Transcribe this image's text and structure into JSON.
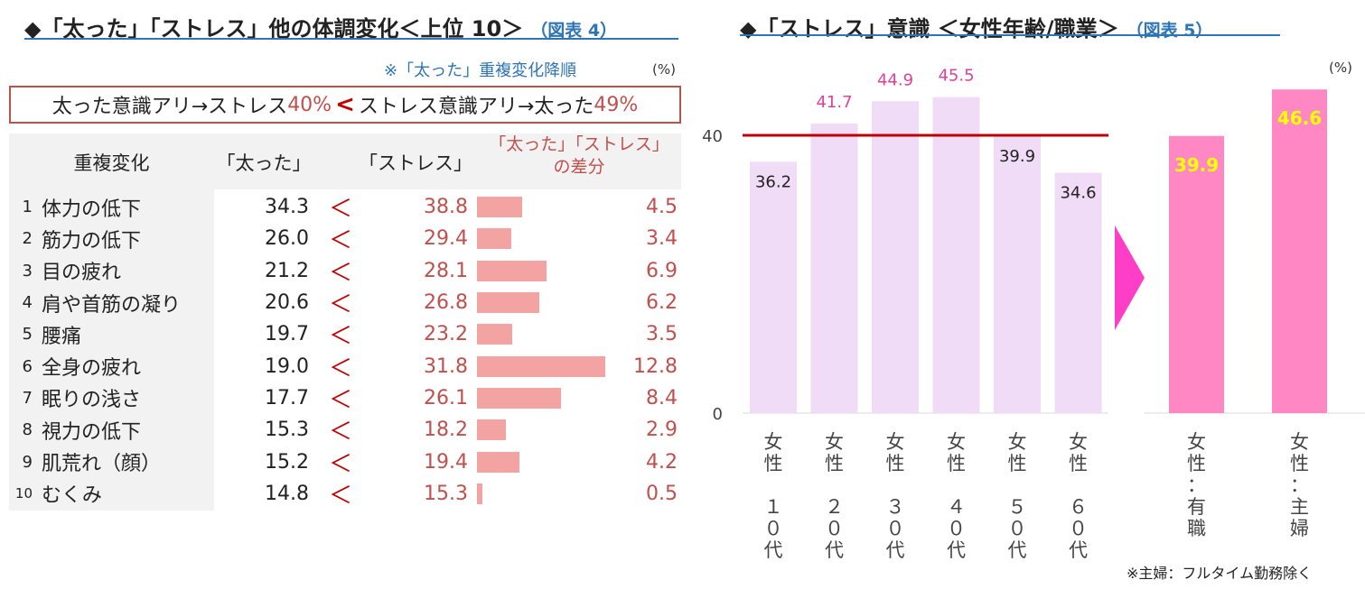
{
  "fig4": {
    "title": "◆「太った」「ストレス」他の体調変化＜上位 10＞",
    "figure_num": "（図表 4）",
    "sort_note": "※「太った」重複変化降順",
    "unit": "(%)",
    "banner": {
      "part1": "太った意識アリ→ストレス",
      "pct1": "40%",
      "lt": "<",
      "part2": "ストレス意識アリ→太った",
      "pct2": "49%"
    },
    "headers": {
      "change": "重複変化",
      "futotta": "「太った」",
      "stress": "「ストレス」",
      "diff_line1": "「太った」「ストレス」",
      "diff_line2": "の差分"
    },
    "lt_symbol": "＜"
  },
  "chart_data": [
    {
      "type": "table",
      "title": "◆「太った」「ストレス」他の体調変化＜上位 10＞",
      "columns": [
        "重複変化",
        "「太った」",
        "「ストレス」",
        "「太った」「ストレス」の差分"
      ],
      "rows": [
        {
          "rank": "1",
          "label": "体力の低下",
          "futotta": "34.3",
          "stress": "38.8",
          "diff": "4.5"
        },
        {
          "rank": "2",
          "label": "筋力の低下",
          "futotta": "26.0",
          "stress": "29.4",
          "diff": "3.4"
        },
        {
          "rank": "3",
          "label": "目の疲れ",
          "futotta": "21.2",
          "stress": "28.1",
          "diff": "6.9"
        },
        {
          "rank": "4",
          "label": "肩や首筋の凝り",
          "futotta": "20.6",
          "stress": "26.8",
          "diff": "6.2"
        },
        {
          "rank": "5",
          "label": "腰痛",
          "futotta": "19.7",
          "stress": "23.2",
          "diff": "3.5"
        },
        {
          "rank": "6",
          "label": "全身の疲れ",
          "futotta": "19.0",
          "stress": "31.8",
          "diff": "12.8"
        },
        {
          "rank": "7",
          "label": "眠りの浅さ",
          "futotta": "17.7",
          "stress": "26.1",
          "diff": "8.4"
        },
        {
          "rank": "8",
          "label": "視力の低下",
          "futotta": "15.3",
          "stress": "18.2",
          "diff": "2.9"
        },
        {
          "rank": "9",
          "label": "肌荒れ（顔）",
          "futotta": "15.2",
          "stress": "19.4",
          "diff": "4.2"
        },
        {
          "rank": "10",
          "label": "むくみ",
          "futotta": "14.8",
          "stress": "15.3",
          "diff": "0.5"
        }
      ]
    },
    {
      "type": "bar",
      "title": "◆「ストレス」意識 ＜女性年齢/職業＞",
      "figure_num": "（図表 5）",
      "unit": "(%)",
      "yticks": [
        "0",
        "40"
      ],
      "ylim": [
        0,
        48
      ],
      "reference_line": 40,
      "categories": [
        "女性10代",
        "女性20代",
        "女性30代",
        "女性40代",
        "女性50代",
        "女性60代"
      ],
      "category_lines": [
        [
          "女",
          "性",
          "",
          "１",
          "０",
          "代"
        ],
        [
          "女",
          "性",
          "",
          "２",
          "０",
          "代"
        ],
        [
          "女",
          "性",
          "",
          "３",
          "０",
          "代"
        ],
        [
          "女",
          "性",
          "",
          "４",
          "０",
          "代"
        ],
        [
          "女",
          "性",
          "",
          "５",
          "０",
          "代"
        ],
        [
          "女",
          "性",
          "",
          "６",
          "０",
          "代"
        ]
      ],
      "values": [
        36.2,
        41.7,
        44.9,
        45.5,
        39.9,
        34.6
      ],
      "value_labels": [
        "36.2",
        "41.7",
        "44.9",
        "45.5",
        "39.9",
        "34.6"
      ],
      "bar_color": "#f0dcf7",
      "label_color_above": "#e0409a",
      "label_color_below": "#222222"
    },
    {
      "type": "bar",
      "categories": [
        "女性：有職",
        "女性：主婦"
      ],
      "category_lines": [
        [
          "女",
          "性",
          "：",
          "有",
          "職"
        ],
        [
          "女",
          "性",
          "：",
          "主",
          "婦"
        ]
      ],
      "values": [
        39.9,
        46.6
      ],
      "value_labels": [
        "39.9",
        "46.6"
      ],
      "unit": "(%)",
      "bar_color": "#ff88c4",
      "label_color": "#ffff00",
      "arrow_color": "#ff3ec8"
    }
  ],
  "fig5": {
    "footnote": "※主婦：フルタイム勤務除く"
  }
}
